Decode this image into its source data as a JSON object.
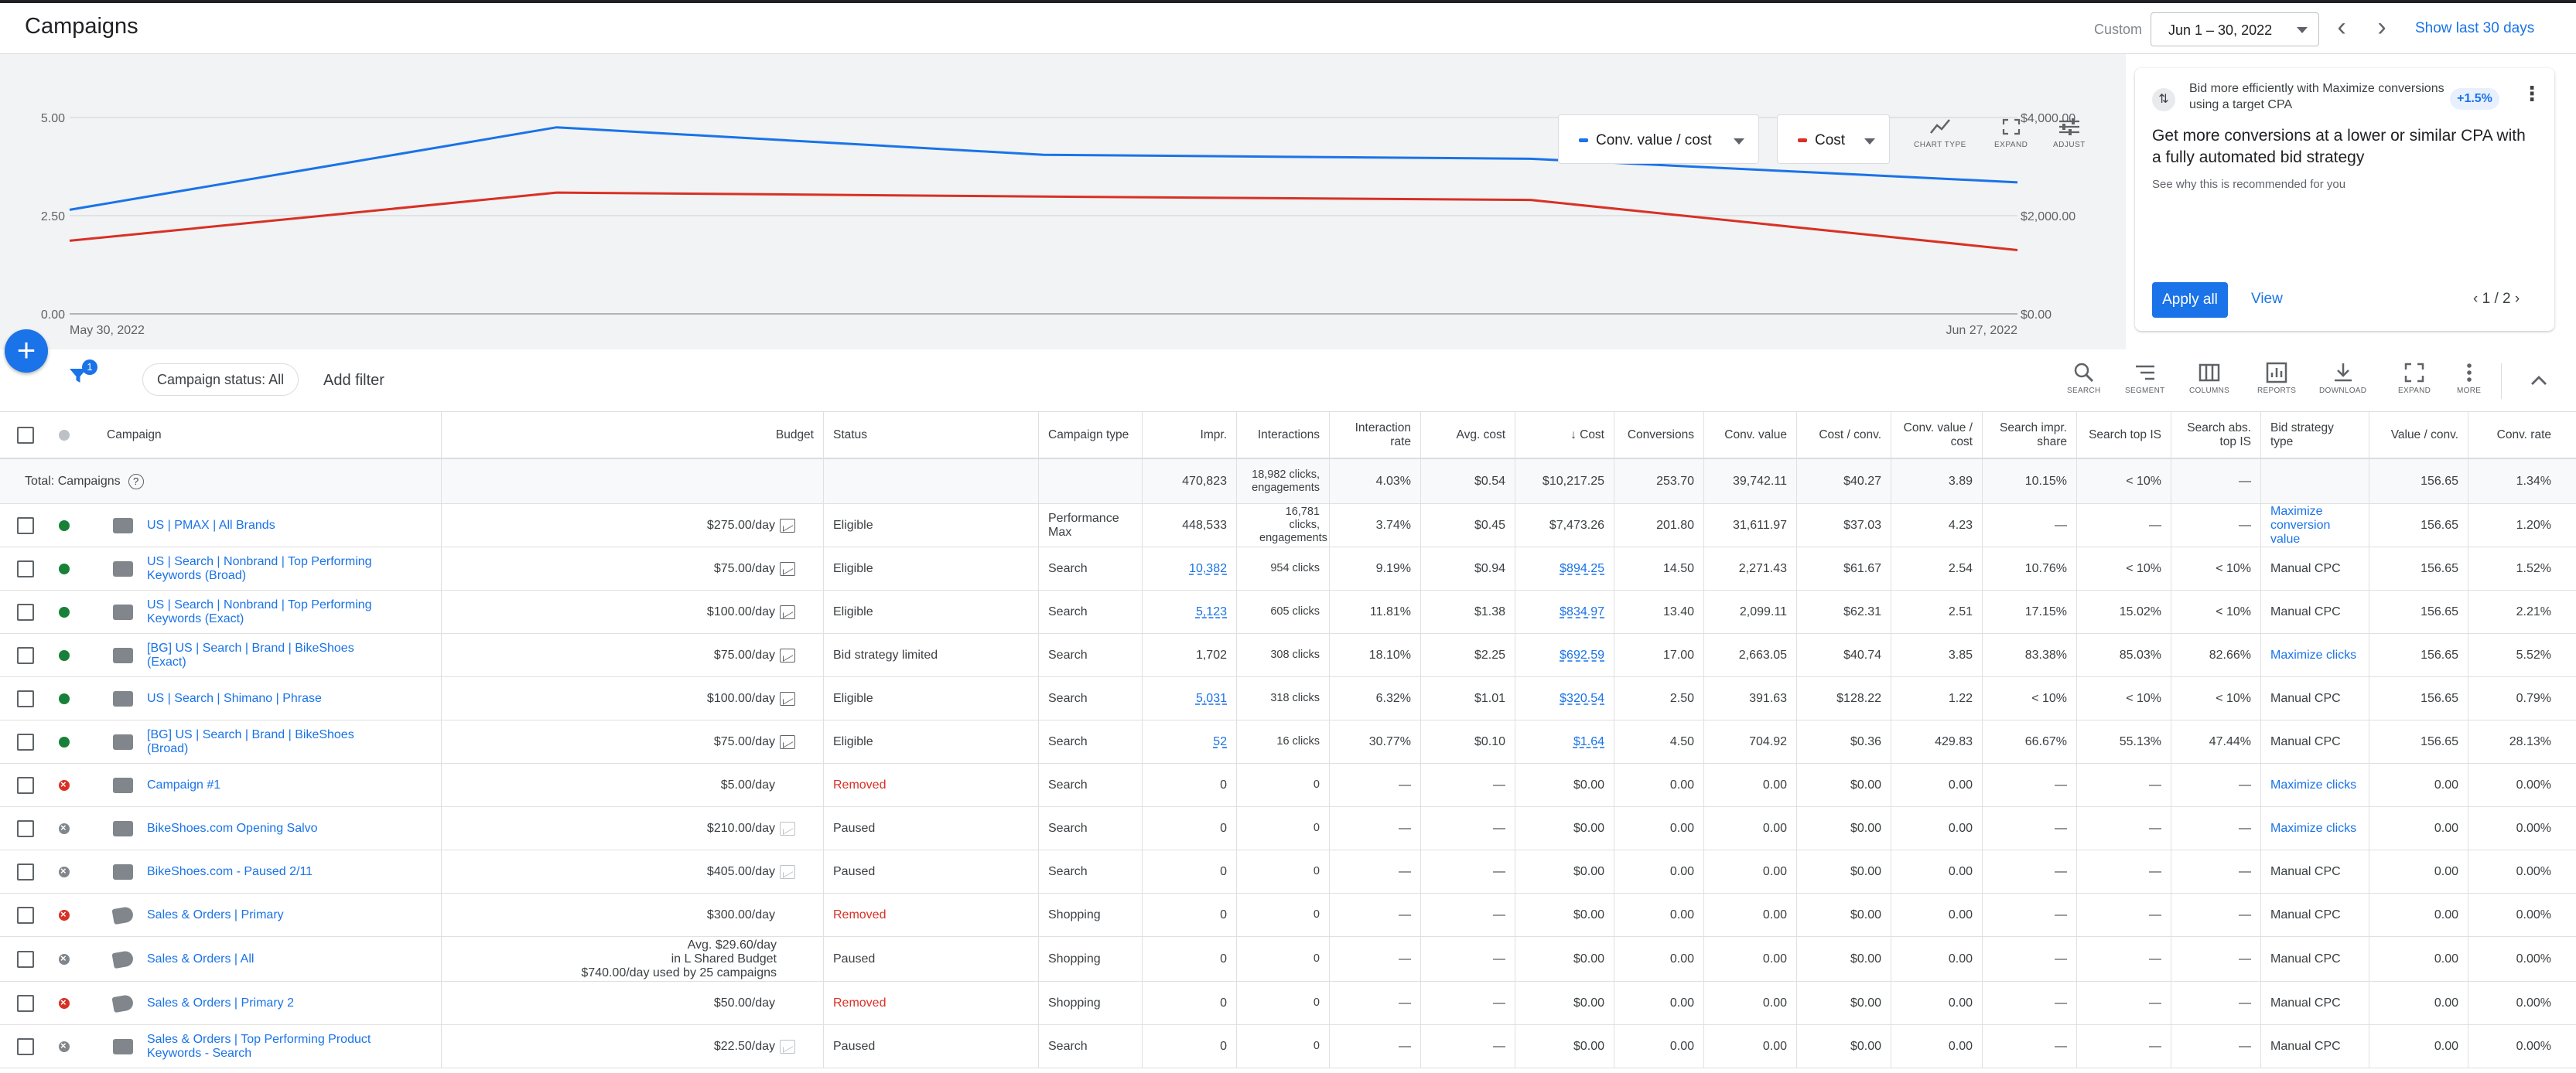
{
  "header": {
    "title": "Campaigns",
    "custom_label": "Custom",
    "date_range": "Jun 1 – 30, 2022",
    "prev_arrow": "‹",
    "next_arrow": "›",
    "show_last": "Show last 30 days"
  },
  "chart": {
    "metric1": "Conv. value / cost",
    "metric2": "Cost",
    "tools": [
      "CHART TYPE",
      "EXPAND",
      "ADJUST"
    ],
    "colors": {
      "series1": "#1a73e8",
      "series2": "#d93025"
    }
  },
  "chart_data": {
    "type": "line",
    "x": [
      "May 30, 2022",
      "Jun 6, 2022",
      "Jun 13, 2022",
      "Jun 20, 2022",
      "Jun 27, 2022"
    ],
    "x_tick_labels": [
      "May 30, 2022",
      "Jun 27, 2022"
    ],
    "y_left_ticks": [
      "5.00",
      "2.50",
      "0.00"
    ],
    "y_right_ticks": [
      "$4,000.00",
      "$2,000.00",
      "$0.00"
    ],
    "ylim_left": [
      0,
      5
    ],
    "ylim_right": [
      0,
      4000
    ],
    "series": [
      {
        "name": "Conv. value / cost",
        "axis": "left",
        "values": [
          2.65,
          4.75,
          4.05,
          3.95,
          3.35
        ]
      },
      {
        "name": "Cost",
        "axis": "right",
        "values": [
          1490,
          2470,
          2390,
          2320,
          1300
        ]
      }
    ],
    "grid": true
  },
  "recommendation": {
    "icon": "⇅",
    "headline": "Bid more efficiently with Maximize conversions using a target CPA",
    "badge": "+1.5%",
    "more": "⋮",
    "title": "Get more conversions at a lower or similar CPA with a fully automated bid strategy",
    "sub": "See why this is recommended for you",
    "apply": "Apply all",
    "view": "View",
    "pager": "‹ 1 / 2 ›"
  },
  "fab": "+",
  "filters": {
    "badge": "1",
    "chip": "Campaign status: All",
    "add": "Add filter",
    "tools": [
      "SEARCH",
      "SEGMENT",
      "COLUMNS",
      "REPORTS",
      "DOWNLOAD",
      "EXPAND",
      "MORE"
    ]
  },
  "table": {
    "headers": {
      "campaign": "Campaign",
      "budget": "Budget",
      "status": "Status",
      "type": "Campaign type",
      "impr": "Impr.",
      "interactions": "Interactions",
      "irate": "Interaction rate",
      "avgcost": "Avg. cost",
      "cost": "↓ Cost",
      "conv": "Conversions",
      "convval": "Conv. value",
      "costconv": "Cost / conv.",
      "cvcost": "Conv. value / cost",
      "sis": "Search impr. share",
      "stop": "Search top IS",
      "sabs": "Search abs. top IS",
      "bid": "Bid strategy type",
      "vconv": "Value / conv.",
      "crate": "Conv. rate"
    },
    "total": {
      "label": "Total: Campaigns",
      "help": "?",
      "impr": "470,823",
      "interactions": "18,982 clicks, engagements",
      "irate": "4.03%",
      "avgcost": "$0.54",
      "cost": "$10,217.25",
      "conv": "253.70",
      "convval": "39,742.11",
      "costconv": "$40.27",
      "cvcost": "3.89",
      "sis": "10.15%",
      "stop": "< 10%",
      "sabs": "—",
      "bid": "",
      "vconv": "156.65",
      "crate": "1.34%"
    },
    "rows": [
      {
        "dot": "green",
        "icon": "pmax",
        "name": "US | PMAX | All Brands",
        "budget": "$275.00/day",
        "budget_icon": "on",
        "status": "Eligible",
        "type": "Performance Max",
        "impr": "448,533",
        "interactions": "16,781 clicks, engagements",
        "irate": "3.74%",
        "avgcost": "$0.45",
        "cost": "$7,473.26",
        "conv": "201.80",
        "convval": "31,611.97",
        "costconv": "$37.03",
        "cvcost": "4.23",
        "sis": "—",
        "stop": "—",
        "sabs": "—",
        "bid": "Maximize conversion value",
        "vconv": "156.65",
        "crate": "1.20%"
      },
      {
        "dot": "green",
        "icon": "search",
        "name": "US | Search | Nonbrand | Top Performing Keywords (Broad)",
        "budget": "$75.00/day",
        "budget_icon": "on",
        "status": "Eligible",
        "type": "Search",
        "impr": "10,382",
        "interactions": "954 clicks",
        "irate": "9.19%",
        "avgcost": "$0.94",
        "cost": "$894.25",
        "conv": "14.50",
        "convval": "2,271.43",
        "costconv": "$61.67",
        "cvcost": "2.54",
        "sis": "10.76%",
        "stop": "< 10%",
        "sabs": "< 10%",
        "bid": "Manual CPC",
        "vconv": "156.65",
        "crate": "1.52%"
      },
      {
        "dot": "green",
        "icon": "search",
        "name": "US | Search | Nonbrand | Top Performing Keywords (Exact)",
        "budget": "$100.00/day",
        "budget_icon": "on",
        "status": "Eligible",
        "type": "Search",
        "impr": "5,123",
        "interactions": "605 clicks",
        "irate": "11.81%",
        "avgcost": "$1.38",
        "cost": "$834.97",
        "conv": "13.40",
        "convval": "2,099.11",
        "costconv": "$62.31",
        "cvcost": "2.51",
        "sis": "17.15%",
        "stop": "15.02%",
        "sabs": "< 10%",
        "bid": "Manual CPC",
        "vconv": "156.65",
        "crate": "2.21%"
      },
      {
        "dot": "green",
        "icon": "search",
        "name": "[BG] US | Search | Brand | BikeShoes (Exact)",
        "budget": "$75.00/day",
        "budget_icon": "on",
        "status": "Bid strategy limited",
        "type": "Search",
        "impr": "1,702",
        "interactions": "308 clicks",
        "irate": "18.10%",
        "avgcost": "$2.25",
        "cost": "$692.59",
        "conv": "17.00",
        "convval": "2,663.05",
        "costconv": "$40.74",
        "cvcost": "3.85",
        "sis": "83.38%",
        "stop": "85.03%",
        "sabs": "82.66%",
        "bid": "Maximize clicks",
        "vconv": "156.65",
        "crate": "5.52%"
      },
      {
        "dot": "green",
        "icon": "search",
        "name": "US | Search | Shimano | Phrase",
        "budget": "$100.00/day",
        "budget_icon": "on",
        "status": "Eligible",
        "type": "Search",
        "impr": "5,031",
        "interactions": "318 clicks",
        "irate": "6.32%",
        "avgcost": "$1.01",
        "cost": "$320.54",
        "conv": "2.50",
        "convval": "391.63",
        "costconv": "$128.22",
        "cvcost": "1.22",
        "sis": "< 10%",
        "stop": "< 10%",
        "sabs": "< 10%",
        "bid": "Manual CPC",
        "vconv": "156.65",
        "crate": "0.79%"
      },
      {
        "dot": "green",
        "icon": "search",
        "name": "[BG] US | Search | Brand | BikeShoes (Broad)",
        "budget": "$75.00/day",
        "budget_icon": "on",
        "status": "Eligible",
        "type": "Search",
        "impr": "52",
        "interactions": "16 clicks",
        "irate": "30.77%",
        "avgcost": "$0.10",
        "cost": "$1.64",
        "conv": "4.50",
        "convval": "704.92",
        "costconv": "$0.36",
        "cvcost": "429.83",
        "sis": "66.67%",
        "stop": "55.13%",
        "sabs": "47.44%",
        "bid": "Manual CPC",
        "vconv": "156.65",
        "crate": "28.13%"
      },
      {
        "dot": "red",
        "icon": "search2",
        "name": "Campaign #1",
        "budget": "$5.00/day",
        "budget_icon": "",
        "status": "Removed",
        "type": "Search",
        "impr": "0",
        "interactions": "0",
        "irate": "—",
        "avgcost": "—",
        "cost": "$0.00",
        "conv": "0.00",
        "convval": "0.00",
        "costconv": "$0.00",
        "cvcost": "0.00",
        "sis": "—",
        "stop": "—",
        "sabs": "—",
        "bid": "Maximize clicks",
        "vconv": "0.00",
        "crate": "0.00%"
      },
      {
        "dot": "gray2",
        "icon": "search2",
        "name": "BikeShoes.com Opening Salvo",
        "budget": "$210.00/day",
        "budget_icon": "off",
        "status": "Paused",
        "type": "Search",
        "impr": "0",
        "interactions": "0",
        "irate": "—",
        "avgcost": "—",
        "cost": "$0.00",
        "conv": "0.00",
        "convval": "0.00",
        "costconv": "$0.00",
        "cvcost": "0.00",
        "sis": "—",
        "stop": "—",
        "sabs": "—",
        "bid": "Maximize clicks",
        "vconv": "0.00",
        "crate": "0.00%"
      },
      {
        "dot": "gray2",
        "icon": "search",
        "name": "BikeShoes.com - Paused 2/11",
        "budget": "$405.00/day",
        "budget_icon": "off",
        "status": "Paused",
        "type": "Search",
        "impr": "0",
        "interactions": "0",
        "irate": "—",
        "avgcost": "—",
        "cost": "$0.00",
        "conv": "0.00",
        "convval": "0.00",
        "costconv": "$0.00",
        "cvcost": "0.00",
        "sis": "—",
        "stop": "—",
        "sabs": "—",
        "bid": "Manual CPC",
        "vconv": "0.00",
        "crate": "0.00%"
      },
      {
        "dot": "red",
        "icon": "shopping",
        "name": "Sales & Orders | Primary",
        "budget": "$300.00/day",
        "budget_icon": "",
        "status": "Removed",
        "type": "Shopping",
        "impr": "0",
        "interactions": "0",
        "irate": "—",
        "avgcost": "—",
        "cost": "$0.00",
        "conv": "0.00",
        "convval": "0.00",
        "costconv": "$0.00",
        "cvcost": "0.00",
        "sis": "—",
        "stop": "—",
        "sabs": "—",
        "bid": "Manual CPC",
        "vconv": "0.00",
        "crate": "0.00%"
      },
      {
        "dot": "gray2",
        "icon": "shopping",
        "name": "Sales & Orders | All",
        "budget": "Avg. $29.60/day in L Shared Budget $740.00/day used by 25 campaigns",
        "budget_lines": [
          "Avg. $29.60/day",
          "in L Shared Budget",
          "$740.00/day used by 25 campaigns"
        ],
        "budget_icon": "",
        "status": "Paused",
        "type": "Shopping",
        "impr": "0",
        "interactions": "0",
        "irate": "—",
        "avgcost": "—",
        "cost": "$0.00",
        "conv": "0.00",
        "convval": "0.00",
        "costconv": "$0.00",
        "cvcost": "0.00",
        "sis": "—",
        "stop": "—",
        "sabs": "—",
        "bid": "Manual CPC",
        "vconv": "0.00",
        "crate": "0.00%"
      },
      {
        "dot": "red",
        "icon": "shopping",
        "name": "Sales & Orders | Primary 2",
        "budget": "$50.00/day",
        "budget_icon": "",
        "status": "Removed",
        "type": "Shopping",
        "impr": "0",
        "interactions": "0",
        "irate": "—",
        "avgcost": "—",
        "cost": "$0.00",
        "conv": "0.00",
        "convval": "0.00",
        "costconv": "$0.00",
        "cvcost": "0.00",
        "sis": "—",
        "stop": "—",
        "sabs": "—",
        "bid": "Manual CPC",
        "vconv": "0.00",
        "crate": "0.00%"
      },
      {
        "dot": "gray2",
        "icon": "search",
        "name": "Sales & Orders | Top Performing Product Keywords - Search",
        "budget": "$22.50/day",
        "budget_icon": "off",
        "status": "Paused",
        "type": "Search",
        "impr": "0",
        "interactions": "0",
        "irate": "—",
        "avgcost": "—",
        "cost": "$0.00",
        "conv": "0.00",
        "convval": "0.00",
        "costconv": "$0.00",
        "cvcost": "0.00",
        "sis": "—",
        "stop": "—",
        "sabs": "—",
        "bid": "Manual CPC",
        "vconv": "0.00",
        "crate": "0.00%"
      }
    ]
  }
}
